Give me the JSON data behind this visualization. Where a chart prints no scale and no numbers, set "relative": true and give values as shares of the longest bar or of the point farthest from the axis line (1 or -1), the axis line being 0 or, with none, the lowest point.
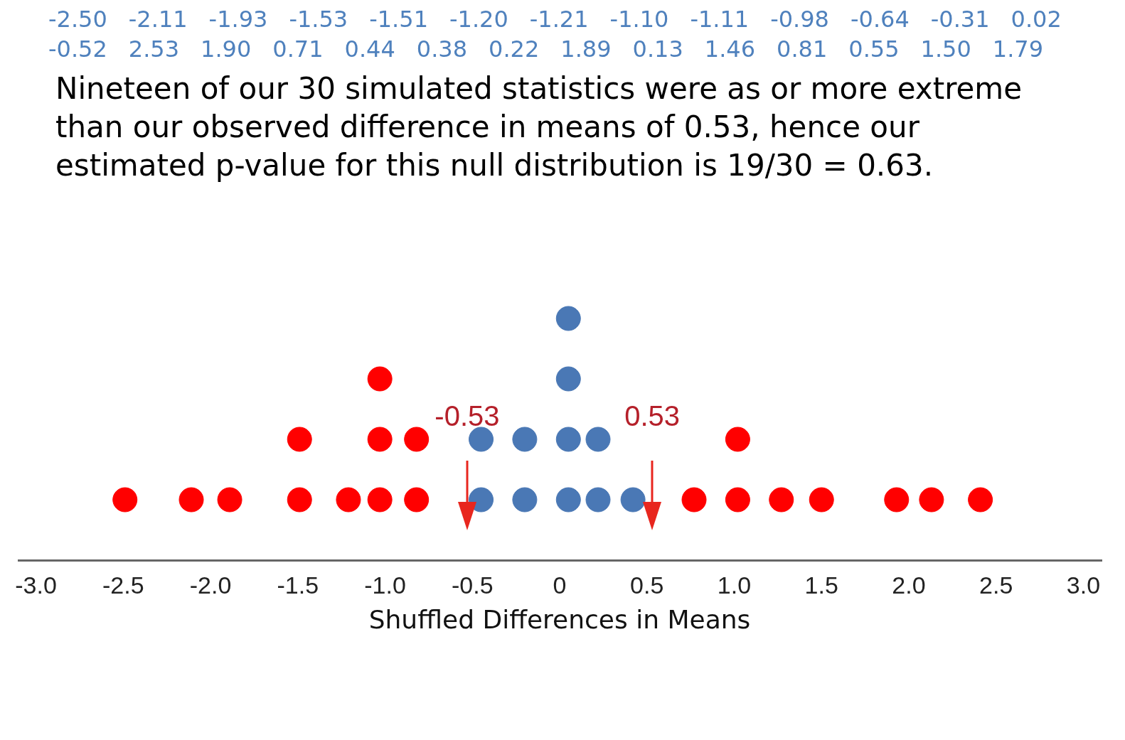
{
  "chart_data": {
    "type": "scatter",
    "title": "Nineteen of our 30 simulated statistics were as or more extreme than our observed difference in means of 0.53, hence our estimated p-value for this null distribution is 19/30 = 0.63.",
    "xlabel": "Shuffled Differences in Means",
    "annotations": [
      "-2.50",
      "-2.11",
      "-1.93",
      "-1.53",
      "-1.51",
      "-1.20",
      "-1.21",
      "-1.10",
      "-1.11",
      "-0.98",
      "-0.64",
      "-0.31",
      "0.02",
      "-0.52",
      "2.53",
      "1.90",
      "0.71",
      "0.44",
      "0.38",
      "0.22",
      "1.89",
      "0.13",
      "1.46",
      "0.81",
      "0.55",
      "1.50",
      "1.79"
    ],
    "ref_lines": [
      {
        "axis": "x",
        "value": -0.53,
        "label": "-0.53",
        "color": "#e8261e"
      },
      {
        "axis": "x",
        "value": 0.53,
        "label": "0.53",
        "color": "#e8261e"
      }
    ],
    "relative": true,
    "series": [
      {
        "color": "#ff0000",
        "x": [
          -2.49,
          -2.11,
          -1.89,
          -1.49,
          -1.49,
          -1.21,
          -1.03,
          -1.03,
          -1.03,
          -0.82,
          -0.82,
          0.77,
          1.02,
          1.02,
          1.27,
          1.5,
          1.93,
          2.13,
          2.41
        ],
        "values": [
          0.25,
          0.25,
          0.25,
          0.25,
          0.5,
          0.25,
          0.25,
          0.5,
          0.75,
          0.25,
          0.5,
          0.25,
          0.25,
          0.5,
          0.25,
          0.25,
          0.25,
          0.25,
          0.25
        ]
      },
      {
        "color": "#4a78b5",
        "x": [
          -0.45,
          -0.45,
          -0.2,
          -0.2,
          0.05,
          0.05,
          0.05,
          0.05,
          0.22,
          0.22,
          0.42
        ],
        "values": [
          0.25,
          0.5,
          0.25,
          0.5,
          0.25,
          0.5,
          0.75,
          1,
          0.25,
          0.5,
          0.25
        ]
      }
    ],
    "xlim": [
      -3.1,
      3.1
    ],
    "xticks": [
      {
        "value": -3,
        "label": "-3.0"
      },
      {
        "value": -2.5,
        "label": "-2.5"
      },
      {
        "value": -2,
        "label": "-2.0"
      },
      {
        "value": -1.5,
        "label": "-1.5"
      },
      {
        "value": -1,
        "label": "-1.0"
      },
      {
        "value": -0.5,
        "label": "-0.5"
      },
      0,
      {
        "value": 0.5,
        "label": "0.5"
      },
      {
        "value": 1,
        "label": "1.0"
      },
      {
        "value": 1.5,
        "label": "1.5"
      },
      {
        "value": 2,
        "label": "2.0"
      },
      {
        "value": 2.5,
        "label": "2.5"
      },
      {
        "value": 3,
        "label": "3.0"
      }
    ],
    "tick_labels": "x",
    "marker": "circle",
    "grid": false,
    "legend": false
  }
}
